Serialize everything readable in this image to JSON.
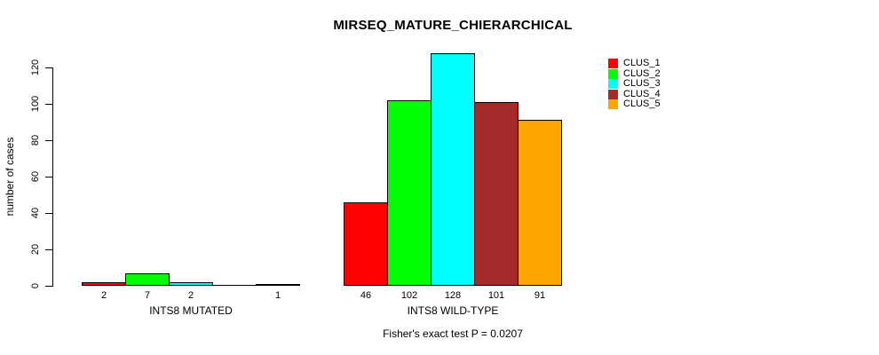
{
  "figure": {
    "title": "MIRSEQ_MATURE_CHIERARCHICAL",
    "footer": "Fisher's exact test P = 0.0207"
  },
  "legend": {
    "position": "top-right",
    "items": [
      {
        "label": "CLUS_1",
        "color": "#FF0000"
      },
      {
        "label": "CLUS_2",
        "color": "#00FF00"
      },
      {
        "label": "CLUS_3",
        "color": "#00FFFF"
      },
      {
        "label": "CLUS_4",
        "color": "#A52A2A"
      },
      {
        "label": "CLUS_5",
        "color": "#FFA500"
      }
    ]
  },
  "chart_data": {
    "type": "bar",
    "title": "MIRSEQ_MATURE_CHIERARCHICAL",
    "xlabel": "",
    "ylabel": "number of cases",
    "groups": [
      "INTS8 MUTATED",
      "INTS8 WILD-TYPE"
    ],
    "series": [
      {
        "name": "CLUS_1",
        "color": "#FF0000",
        "values": [
          2,
          46
        ]
      },
      {
        "name": "CLUS_2",
        "color": "#00FF00",
        "values": [
          7,
          102
        ]
      },
      {
        "name": "CLUS_3",
        "color": "#00FFFF",
        "values": [
          2,
          128
        ]
      },
      {
        "name": "CLUS_4",
        "color": "#A52A2A",
        "values": [
          0,
          101
        ]
      },
      {
        "name": "CLUS_5",
        "color": "#FFA500",
        "values": [
          1,
          91
        ]
      }
    ],
    "bar_labels": [
      [
        "2",
        "7",
        "2",
        "",
        "1"
      ],
      [
        "46",
        "102",
        "128",
        "101",
        "91"
      ]
    ],
    "yticks": [
      0,
      20,
      40,
      60,
      80,
      100,
      120
    ],
    "ylim": [
      0,
      130
    ],
    "grid": false,
    "legend_position": "top-right",
    "annotation": "Fisher's exact test P = 0.0207"
  }
}
